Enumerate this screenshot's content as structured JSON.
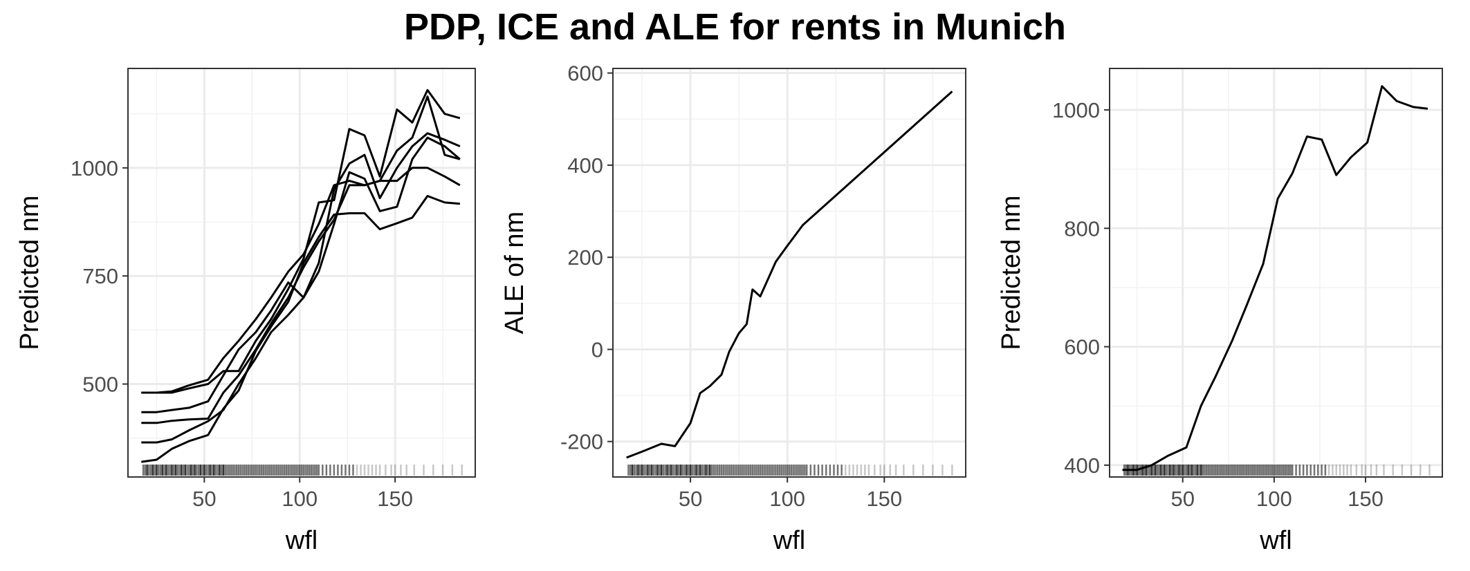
{
  "title": "PDP, ICE and ALE for rents in Munich",
  "chart_data": [
    {
      "type": "line",
      "subtype": "ice",
      "xlabel": "wfl",
      "ylabel": "Predicted nm",
      "xlim": [
        10,
        192
      ],
      "ylim": [
        285,
        1230
      ],
      "xticks": [
        50,
        100,
        150
      ],
      "yticks": [
        500,
        750,
        1000
      ],
      "grid": true,
      "rug": true,
      "series": [
        {
          "x": [
            17,
            25,
            33,
            42,
            52,
            60,
            68,
            77,
            85,
            94,
            102,
            110,
            118,
            126,
            134,
            142,
            151,
            159,
            167,
            176,
            184
          ],
          "values": [
            480,
            480,
            483,
            497,
            510,
            560,
            600,
            650,
            700,
            760,
            800,
            870,
            960,
            970,
            960,
            970,
            970,
            1000,
            1000,
            980,
            960
          ]
        },
        {
          "x": [
            17,
            25,
            33,
            42,
            52,
            60,
            68,
            77,
            85,
            94,
            102,
            110,
            118,
            126,
            134,
            142,
            151,
            159,
            167,
            176,
            184
          ],
          "values": [
            480,
            480,
            480,
            490,
            500,
            530,
            530,
            600,
            650,
            720,
            790,
            920,
            925,
            1090,
            1075,
            980,
            1135,
            1105,
            1180,
            1125,
            1115
          ]
        },
        {
          "x": [
            17,
            25,
            33,
            42,
            52,
            60,
            68,
            77,
            85,
            94,
            102,
            110,
            118,
            126,
            134,
            142,
            151,
            159,
            167,
            176,
            184
          ],
          "values": [
            435,
            435,
            440,
            445,
            460,
            520,
            580,
            620,
            670,
            735,
            700,
            780,
            950,
            1010,
            1030,
            930,
            1000,
            1050,
            1080,
            1065,
            1050
          ]
        },
        {
          "x": [
            17,
            25,
            33,
            42,
            52,
            60,
            68,
            77,
            85,
            94,
            102,
            110,
            118,
            126,
            134,
            142,
            151,
            159,
            167,
            176,
            184
          ],
          "values": [
            410,
            410,
            415,
            418,
            420,
            480,
            520,
            580,
            640,
            700,
            770,
            830,
            880,
            960,
            960,
            970,
            1040,
            1070,
            1165,
            1030,
            1020
          ]
        },
        {
          "x": [
            17,
            25,
            33,
            42,
            52,
            60,
            68,
            77,
            85,
            94,
            102,
            110,
            118,
            126,
            134,
            142,
            151,
            159,
            167,
            176,
            184
          ],
          "values": [
            365,
            365,
            372,
            393,
            414,
            440,
            500,
            560,
            620,
            660,
            700,
            760,
            870,
            990,
            975,
            900,
            910,
            1020,
            1070,
            1050,
            1020
          ]
        },
        {
          "x": [
            17,
            25,
            33,
            42,
            52,
            60,
            68,
            77,
            85,
            94,
            102,
            110,
            118,
            126,
            134,
            142,
            151,
            159,
            167,
            176,
            184
          ],
          "values": [
            320,
            325,
            350,
            368,
            382,
            443,
            485,
            577,
            633,
            690,
            780,
            840,
            892,
            895,
            895,
            858,
            872,
            885,
            935,
            920,
            917
          ]
        }
      ]
    },
    {
      "type": "line",
      "subtype": "ale",
      "xlabel": "wfl",
      "ylabel": "ALE of nm",
      "xlim": [
        10,
        192
      ],
      "ylim": [
        -277,
        610
      ],
      "xticks": [
        50,
        100,
        150
      ],
      "yticks": [
        -200,
        0,
        200,
        400,
        600
      ],
      "grid": true,
      "rug": true,
      "series": [
        {
          "x": [
            17,
            25,
            35,
            42,
            50,
            55,
            60,
            66,
            70,
            75,
            79,
            82,
            86,
            94,
            100,
            108,
            185
          ],
          "values": [
            -235,
            -222,
            -205,
            -210,
            -160,
            -95,
            -80,
            -55,
            -5,
            35,
            55,
            130,
            115,
            190,
            225,
            270,
            560
          ]
        }
      ]
    },
    {
      "type": "line",
      "subtype": "pdp",
      "xlabel": "wfl",
      "ylabel": "Predicted nm",
      "xlim": [
        10,
        192
      ],
      "ylim": [
        380,
        1070
      ],
      "xticks": [
        50,
        100,
        150
      ],
      "yticks": [
        400,
        600,
        800,
        1000
      ],
      "grid": true,
      "rug": true,
      "series": [
        {
          "x": [
            17,
            25,
            33,
            42,
            52,
            60,
            68,
            77,
            85,
            94,
            102,
            110,
            118,
            126,
            134,
            142,
            151,
            159,
            167,
            176,
            184
          ],
          "values": [
            392,
            392,
            400,
            416,
            430,
            500,
            550,
            610,
            670,
            740,
            850,
            893,
            955,
            950,
            890,
            920,
            945,
            1040,
            1015,
            1005,
            1002
          ]
        }
      ]
    }
  ]
}
